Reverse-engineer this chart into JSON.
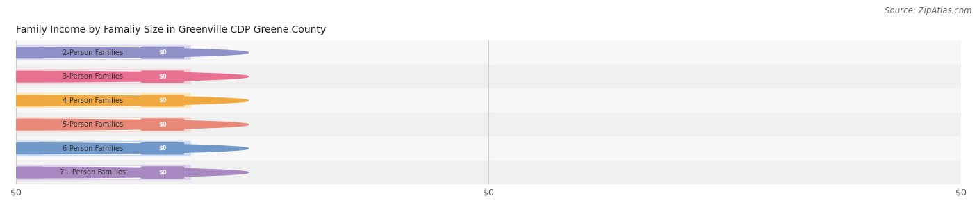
{
  "title": "Family Income by Famaliy Size in Greenville CDP Greene County",
  "source": "Source: ZipAtlas.com",
  "categories": [
    "2-Person Families",
    "3-Person Families",
    "4-Person Families",
    "5-Person Families",
    "6-Person Families",
    "7+ Person Families"
  ],
  "values": [
    0,
    0,
    0,
    0,
    0,
    0
  ],
  "bar_colors": [
    "#9090c8",
    "#e87090",
    "#f0a840",
    "#e88878",
    "#7098c8",
    "#a888c0"
  ],
  "bar_light_colors": [
    "#d8d8f0",
    "#f8d0d8",
    "#fce8c0",
    "#f8d8d0",
    "#c8d8f0",
    "#dcd0ec"
  ],
  "value_labels": [
    "$0",
    "$0",
    "$0",
    "$0",
    "$0",
    "$0"
  ],
  "xtick_labels": [
    "$0",
    "$0",
    "$0"
  ],
  "title_fontsize": 10,
  "source_fontsize": 8.5,
  "background_color": "#ffffff",
  "row_colors": [
    "#f7f7f7",
    "#f0f0f0"
  ]
}
